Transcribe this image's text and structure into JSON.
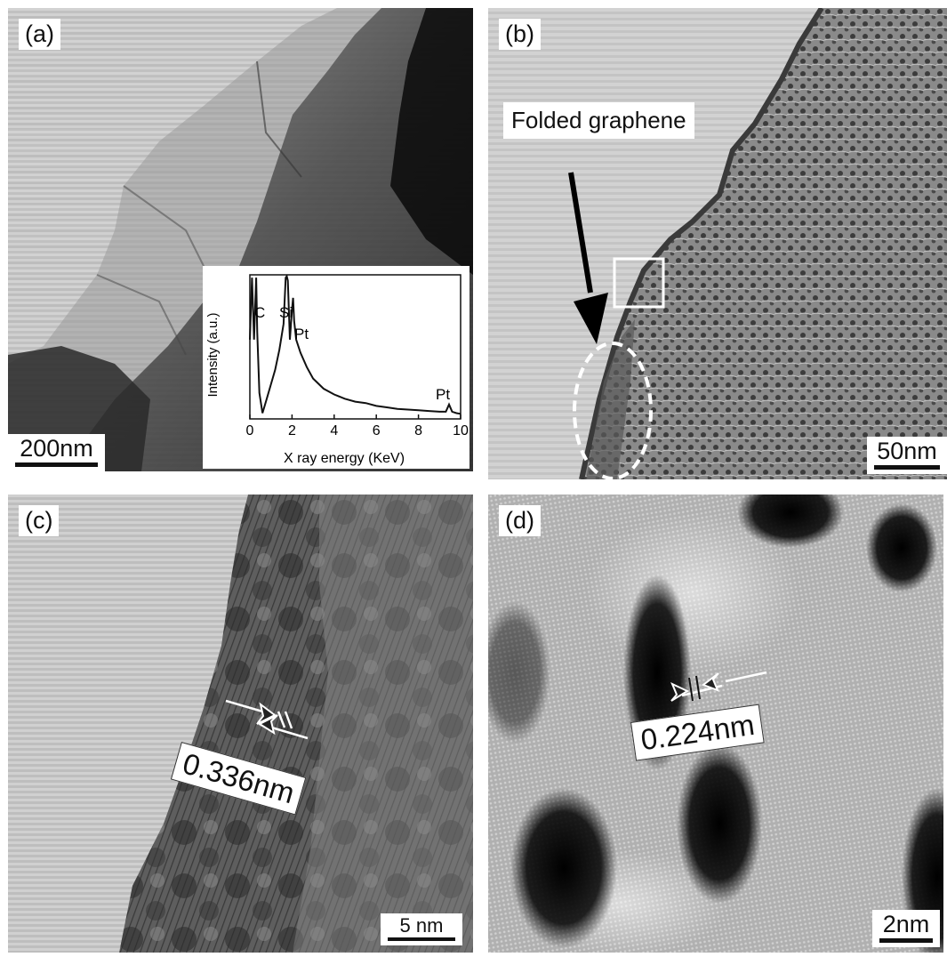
{
  "panels": {
    "a": {
      "label": "(a)",
      "scale": "200nm",
      "inset": {
        "chart_data": {
          "type": "line",
          "xlabel": "X ray energy (KeV)",
          "ylabel": "Intensity (a.u.)",
          "xlim": [
            0,
            10
          ],
          "xticks": [
            "0",
            "2",
            "4",
            "6",
            "8",
            "10"
          ],
          "x": [
            0,
            0.1,
            0.2,
            0.3,
            0.35,
            0.45,
            0.6,
            0.8,
            1.0,
            1.2,
            1.4,
            1.6,
            1.7,
            1.75,
            1.8,
            1.9,
            2.0,
            2.05,
            2.1,
            2.2,
            2.4,
            2.7,
            3.0,
            3.5,
            4.0,
            4.5,
            5.0,
            5.5,
            6.0,
            6.5,
            7.0,
            7.5,
            8.0,
            8.5,
            9.0,
            9.3,
            9.45,
            9.6,
            9.8,
            10.0
          ],
          "y": [
            0.55,
            0.98,
            0.55,
            0.98,
            0.6,
            0.18,
            0.04,
            0.14,
            0.24,
            0.34,
            0.48,
            0.66,
            0.98,
            0.99,
            0.96,
            0.55,
            0.76,
            0.84,
            0.68,
            0.55,
            0.46,
            0.36,
            0.28,
            0.21,
            0.17,
            0.14,
            0.12,
            0.11,
            0.09,
            0.08,
            0.07,
            0.065,
            0.06,
            0.055,
            0.05,
            0.05,
            0.1,
            0.05,
            0.04,
            0.035
          ],
          "annotations": [
            "C",
            "Si",
            "Pt",
            "Pt"
          ]
        }
      }
    },
    "b": {
      "label": "(b)",
      "scale": "50nm",
      "callout": "Folded graphene"
    },
    "c": {
      "label": "(c)",
      "scale": "5 nm",
      "measure": "0.336nm"
    },
    "d": {
      "label": "(d)",
      "scale": "2nm",
      "measure": "0.224nm"
    }
  }
}
